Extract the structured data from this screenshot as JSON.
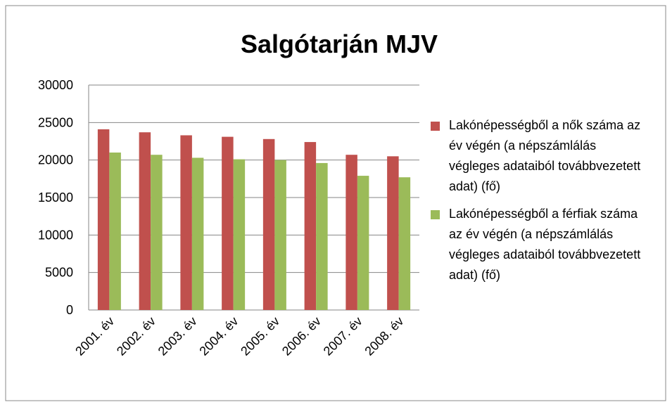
{
  "chart_data": {
    "type": "bar",
    "title": "Salgótarján MJV",
    "categories": [
      "2001. év",
      "2002. év",
      "2003. év",
      "2004. év",
      "2005. év",
      "2006. év",
      "2007. év",
      "2008. év"
    ],
    "series": [
      {
        "name": "Lakónépességből a nők száma az év végén (a népszámlálás végleges adataiból továbbvezetett adat) (fő)",
        "color": "#c0504d",
        "values": [
          24100,
          23700,
          23300,
          23100,
          22800,
          22400,
          20700,
          20500
        ]
      },
      {
        "name": "Lakónépességből a férfiak száma az év végén (a népszámlálás végleges adataiból továbbvezetett adat) (fő)",
        "color": "#9bbb59",
        "values": [
          21000,
          20700,
          20300,
          20100,
          20000,
          19600,
          17900,
          17700
        ]
      }
    ],
    "ylim": [
      0,
      30000
    ],
    "yticks": [
      0,
      5000,
      10000,
      15000,
      20000,
      25000,
      30000
    ],
    "grid": true,
    "legend": "right"
  }
}
